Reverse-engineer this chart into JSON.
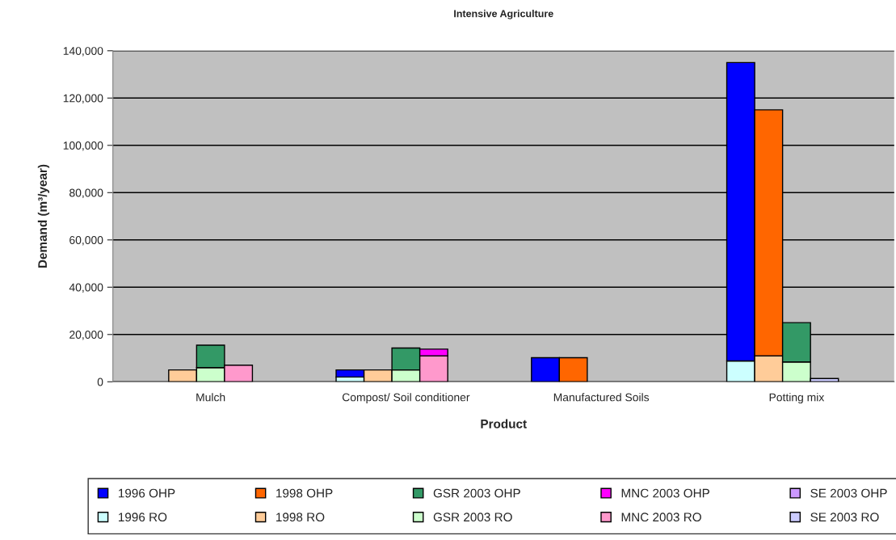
{
  "chart_data": {
    "type": "bar",
    "stacked": true,
    "title": "Intensive Agriculture",
    "xlabel": "Product",
    "ylabel": "Demand (m³/year)",
    "categories": [
      null,
      null,
      null,
      "Mulch",
      null,
      null,
      null,
      null,
      null,
      null,
      "Compost/ Soil conditioner",
      null,
      null,
      null,
      null,
      null,
      null,
      "Manufactured Soils",
      null,
      null,
      null,
      null,
      null,
      null,
      "Potting mix",
      null,
      null,
      null
    ],
    "series": [
      {
        "name": "1996 RO",
        "color": "#ccffff",
        "values": [
          null,
          null,
          null,
          null,
          null,
          null,
          null,
          null,
          2000,
          null,
          null,
          null,
          null,
          null,
          null,
          null,
          null,
          null,
          null,
          null,
          null,
          null,
          8800,
          null,
          null,
          null,
          null,
          null
        ]
      },
      {
        "name": "1996 OHP",
        "color": "#0000ff",
        "values": [
          null,
          null,
          null,
          null,
          null,
          null,
          null,
          null,
          3000,
          null,
          null,
          null,
          null,
          null,
          null,
          10200,
          null,
          null,
          null,
          null,
          null,
          null,
          126200,
          null,
          null,
          null,
          null,
          null
        ]
      },
      {
        "name": "1998 RO",
        "color": "#ffcc99",
        "values": [
          null,
          null,
          5000,
          null,
          null,
          null,
          null,
          null,
          null,
          5000,
          null,
          null,
          null,
          null,
          null,
          null,
          null,
          null,
          null,
          null,
          null,
          null,
          null,
          11000,
          null,
          null,
          null,
          null
        ]
      },
      {
        "name": "1998 OHP",
        "color": "#ff6600",
        "values": [
          null,
          null,
          null,
          null,
          null,
          null,
          null,
          null,
          null,
          null,
          null,
          null,
          null,
          null,
          null,
          null,
          10200,
          null,
          null,
          null,
          null,
          null,
          null,
          104000,
          null,
          null,
          null,
          null
        ]
      },
      {
        "name": "GSR 2003 RO",
        "color": "#ccffcc",
        "values": [
          null,
          null,
          null,
          6000,
          null,
          null,
          null,
          null,
          null,
          null,
          5000,
          null,
          null,
          null,
          null,
          null,
          null,
          null,
          null,
          null,
          null,
          null,
          null,
          null,
          8400,
          null,
          null,
          null
        ]
      },
      {
        "name": "GSR 2003 OHP",
        "color": "#339966",
        "values": [
          null,
          null,
          null,
          9500,
          null,
          null,
          null,
          null,
          null,
          null,
          9300,
          null,
          null,
          null,
          null,
          null,
          null,
          null,
          null,
          null,
          null,
          null,
          null,
          null,
          16600,
          null,
          null,
          null
        ]
      },
      {
        "name": "MNC 2003 RO",
        "color": "#ff99cc",
        "values": [
          null,
          null,
          null,
          null,
          7000,
          null,
          null,
          null,
          null,
          null,
          null,
          11000,
          null,
          null,
          null,
          null,
          null,
          null,
          null,
          null,
          null,
          null,
          null,
          null,
          null,
          null,
          null,
          null
        ]
      },
      {
        "name": "MNC 2003 OHP",
        "color": "#ff00ff",
        "values": [
          null,
          null,
          null,
          null,
          null,
          null,
          null,
          null,
          null,
          null,
          null,
          2800,
          null,
          null,
          null,
          null,
          null,
          null,
          null,
          null,
          null,
          null,
          null,
          null,
          null,
          null,
          null,
          null
        ]
      },
      {
        "name": "SE 2003 RO",
        "color": "#ccccff",
        "values": [
          null,
          null,
          null,
          null,
          null,
          null,
          null,
          null,
          null,
          null,
          null,
          null,
          null,
          null,
          null,
          null,
          null,
          null,
          null,
          null,
          null,
          null,
          null,
          null,
          null,
          1400,
          null,
          null
        ]
      },
      {
        "name": "SE 2003 OHP",
        "color": "#cc99ff",
        "values": [
          null,
          null,
          null,
          null,
          null,
          null,
          null,
          null,
          null,
          null,
          null,
          null,
          null,
          null,
          null,
          null,
          null,
          null,
          null,
          null,
          null,
          null,
          null,
          null,
          null,
          null,
          null,
          null
        ]
      }
    ],
    "ylim": [
      0,
      140000
    ],
    "yticks": [
      0,
      {
        "value": 20000,
        "label": "20,000"
      },
      {
        "value": 40000,
        "label": "40,000"
      },
      {
        "value": 60000,
        "label": "60,000"
      },
      {
        "value": 80000,
        "label": "80,000"
      },
      {
        "value": 100000,
        "label": "100,000"
      },
      {
        "value": 120000,
        "label": "120,000"
      },
      {
        "value": 140000,
        "label": "140,000"
      }
    ],
    "grid": "y",
    "legend": "bottom"
  }
}
